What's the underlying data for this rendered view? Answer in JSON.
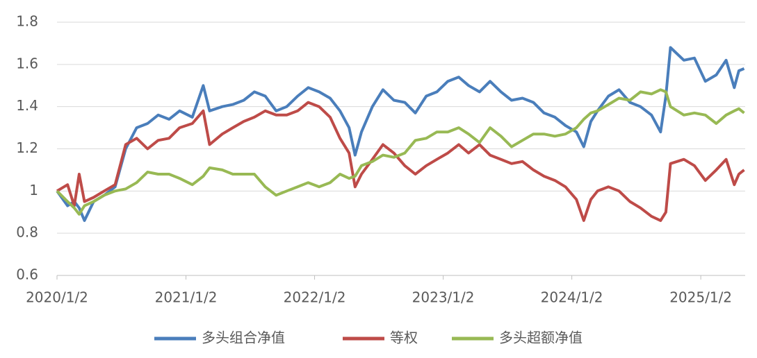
{
  "chart_data": {
    "type": "line",
    "x": [
      "2020/1/2",
      "2020/2/1",
      "2020/2/20",
      "2020/3/5",
      "2020/3/20",
      "2020/4/15",
      "2020/5/15",
      "2020/6/15",
      "2020/7/15",
      "2020/8/15",
      "2020/9/15",
      "2020/10/15",
      "2020/11/15",
      "2020/12/15",
      "2021/1/20",
      "2021/2/20",
      "2021/3/10",
      "2021/4/15",
      "2021/5/15",
      "2021/6/15",
      "2021/7/15",
      "2021/8/15",
      "2021/9/15",
      "2021/10/15",
      "2021/11/15",
      "2021/12/15",
      "2022/1/15",
      "2022/2/15",
      "2022/3/15",
      "2022/4/10",
      "2022/4/27",
      "2022/5/15",
      "2022/6/15",
      "2022/7/15",
      "2022/8/15",
      "2022/9/15",
      "2022/10/15",
      "2022/11/15",
      "2022/12/15",
      "2023/1/15",
      "2023/2/15",
      "2023/3/15",
      "2023/4/15",
      "2023/5/15",
      "2023/6/15",
      "2023/7/15",
      "2023/8/15",
      "2023/9/15",
      "2023/10/15",
      "2023/11/15",
      "2023/12/15",
      "2024/1/15",
      "2024/2/5",
      "2024/2/25",
      "2024/3/15",
      "2024/4/15",
      "2024/5/15",
      "2024/6/15",
      "2024/7/15",
      "2024/8/15",
      "2024/9/10",
      "2024/9/25",
      "2024/10/8",
      "2024/11/15",
      "2024/12/15",
      "2025/1/15",
      "2025/2/15",
      "2025/3/15",
      "2025/4/7",
      "2025/4/20",
      "2025/5/5"
    ],
    "series": [
      {
        "name": "多头组合净值",
        "color": "#4a7ebb",
        "values": [
          1.0,
          0.93,
          0.95,
          0.92,
          0.86,
          0.95,
          0.98,
          1.02,
          1.2,
          1.3,
          1.32,
          1.36,
          1.34,
          1.38,
          1.35,
          1.5,
          1.38,
          1.4,
          1.41,
          1.43,
          1.47,
          1.45,
          1.38,
          1.4,
          1.45,
          1.49,
          1.47,
          1.44,
          1.38,
          1.3,
          1.17,
          1.28,
          1.4,
          1.48,
          1.43,
          1.42,
          1.37,
          1.45,
          1.47,
          1.52,
          1.54,
          1.5,
          1.47,
          1.52,
          1.47,
          1.43,
          1.44,
          1.42,
          1.37,
          1.35,
          1.31,
          1.28,
          1.21,
          1.33,
          1.38,
          1.45,
          1.48,
          1.42,
          1.4,
          1.36,
          1.28,
          1.45,
          1.68,
          1.62,
          1.63,
          1.52,
          1.55,
          1.62,
          1.49,
          1.57,
          1.58
        ]
      },
      {
        "name": "等权",
        "color": "#be4b48",
        "values": [
          1.0,
          1.03,
          0.93,
          1.08,
          0.95,
          0.97,
          1.0,
          1.03,
          1.22,
          1.25,
          1.2,
          1.24,
          1.25,
          1.3,
          1.32,
          1.38,
          1.22,
          1.27,
          1.3,
          1.33,
          1.35,
          1.38,
          1.36,
          1.36,
          1.38,
          1.42,
          1.4,
          1.35,
          1.25,
          1.18,
          1.02,
          1.08,
          1.15,
          1.22,
          1.18,
          1.12,
          1.08,
          1.12,
          1.15,
          1.18,
          1.22,
          1.18,
          1.22,
          1.17,
          1.15,
          1.13,
          1.14,
          1.1,
          1.07,
          1.05,
          1.02,
          0.96,
          0.86,
          0.96,
          1.0,
          1.02,
          1.0,
          0.95,
          0.92,
          0.88,
          0.86,
          0.9,
          1.13,
          1.15,
          1.12,
          1.05,
          1.1,
          1.15,
          1.03,
          1.08,
          1.1
        ]
      },
      {
        "name": "多头超额净值",
        "color": "#98b954",
        "values": [
          1.0,
          0.95,
          0.92,
          0.89,
          0.93,
          0.95,
          0.98,
          1.0,
          1.01,
          1.04,
          1.09,
          1.08,
          1.08,
          1.06,
          1.03,
          1.07,
          1.11,
          1.1,
          1.08,
          1.08,
          1.08,
          1.02,
          0.98,
          1.0,
          1.02,
          1.04,
          1.02,
          1.04,
          1.08,
          1.06,
          1.07,
          1.12,
          1.14,
          1.17,
          1.16,
          1.18,
          1.24,
          1.25,
          1.28,
          1.28,
          1.3,
          1.27,
          1.23,
          1.3,
          1.26,
          1.21,
          1.24,
          1.27,
          1.27,
          1.26,
          1.27,
          1.3,
          1.34,
          1.37,
          1.38,
          1.41,
          1.44,
          1.43,
          1.47,
          1.46,
          1.48,
          1.47,
          1.4,
          1.36,
          1.37,
          1.36,
          1.32,
          1.36,
          1.38,
          1.39,
          1.37
        ]
      }
    ],
    "xlim": [
      "2020/1/2",
      "2025/5/8"
    ],
    "xticks": [
      "2020/1/2",
      "2021/1/2",
      "2022/1/2",
      "2023/1/2",
      "2024/1/2",
      "2025/1/2"
    ],
    "ylim": [
      0.6,
      1.8
    ],
    "yticks": [
      0.6,
      0.8,
      1,
      1.2,
      1.4,
      1.6,
      1.8
    ],
    "grid": true
  }
}
